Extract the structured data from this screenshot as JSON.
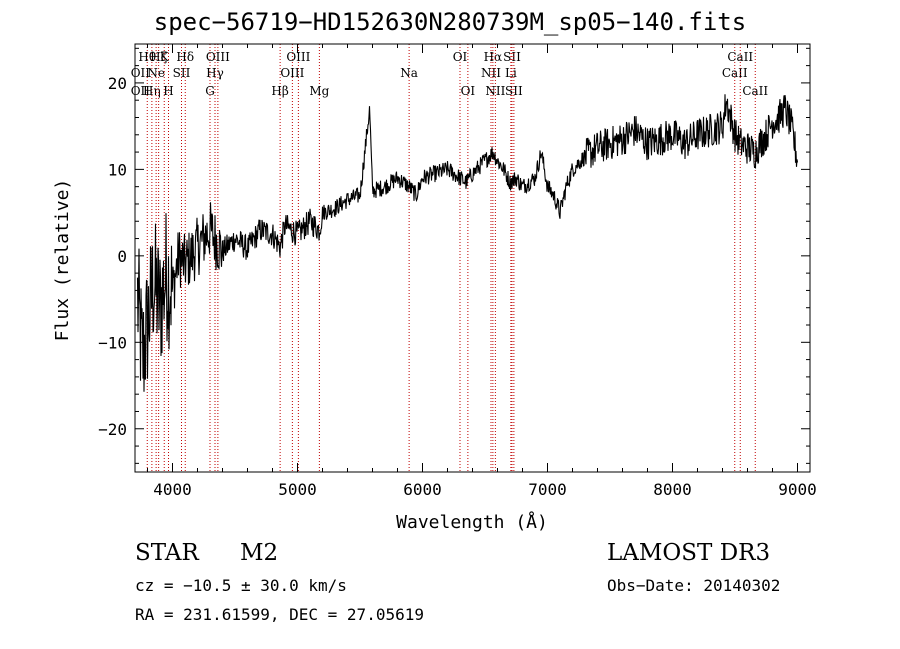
{
  "chart_data": {
    "type": "line",
    "title": "spec−56719−HD152630N280739M_sp05−140.fits",
    "xlabel": "Wavelength (Å)",
    "ylabel": "Flux (relative)",
    "xlim": [
      3700,
      9100
    ],
    "ylim": [
      -25,
      24.5
    ],
    "xticks": [
      4000,
      5000,
      6000,
      7000,
      8000,
      9000
    ],
    "xtick_labels": [
      "4000",
      "5000",
      "6000",
      "7000",
      "8000",
      "9000"
    ],
    "yticks": [
      -20,
      -10,
      0,
      10,
      20
    ],
    "ytick_labels": [
      "−20",
      "−10",
      "0",
      "10",
      "20"
    ],
    "series": [
      {
        "name": "flux",
        "x": [
          3720,
          3760,
          3800,
          3850,
          3900,
          3950,
          4000,
          4050,
          4100,
          4200,
          4300,
          4400,
          4500,
          4600,
          4700,
          4800,
          4861,
          4900,
          5000,
          5100,
          5175,
          5200,
          5300,
          5400,
          5500,
          5577,
          5600,
          5700,
          5800,
          5893,
          5950,
          6000,
          6100,
          6200,
          6300,
          6350,
          6400,
          6500,
          6563,
          6600,
          6650,
          6700,
          6750,
          6800,
          6900,
          6950,
          7000,
          7050,
          7100,
          7150,
          7200,
          7300,
          7400,
          7500,
          7600,
          7700,
          7800,
          7900,
          8000,
          8100,
          8200,
          8300,
          8400,
          8430,
          8500,
          8542,
          8600,
          8662,
          8700,
          8750,
          8800,
          8850,
          8900,
          8950,
          9000
        ],
        "y": [
          -5,
          -12,
          -8,
          -3,
          -6,
          -2,
          -4,
          0,
          -1,
          1,
          3,
          0.5,
          2,
          0.8,
          3,
          2.5,
          1,
          3.5,
          2.5,
          4,
          3,
          5,
          5.5,
          6.5,
          7,
          17,
          7.5,
          8,
          9,
          8,
          7,
          9,
          9.5,
          10,
          9,
          8.5,
          9.5,
          11,
          12,
          11,
          10,
          8.5,
          9,
          8,
          9,
          12,
          8,
          7,
          5,
          8,
          10,
          11.5,
          12.5,
          13,
          13.5,
          14.5,
          13,
          13.5,
          14,
          13,
          14,
          14.5,
          15,
          18,
          14,
          13,
          12.5,
          12,
          13,
          14,
          15.5,
          16,
          17,
          15,
          11
        ]
      }
    ],
    "line_markers": [
      {
        "wavelength": 3798,
        "label": "Hθ",
        "row": 1
      },
      {
        "wavelength": 3835,
        "label": "Hη",
        "row": 3
      },
      {
        "wavelength": 3869,
        "label": "Ne",
        "row": 2
      },
      {
        "wavelength": 3889,
        "label": "Hζ",
        "row": 1
      },
      {
        "wavelength": 3934,
        "label": "K",
        "row": 1
      },
      {
        "wavelength": 3968,
        "label": "H",
        "row": 3
      },
      {
        "wavelength": 4072,
        "label": "SII",
        "row": 2
      },
      {
        "wavelength": 4102,
        "label": "Hδ",
        "row": 1
      },
      {
        "wavelength": 4300,
        "label": "G",
        "row": 3
      },
      {
        "wavelength": 4340,
        "label": "Hγ",
        "row": 2
      },
      {
        "wavelength": 4363,
        "label": "OIII",
        "row": 1
      },
      {
        "wavelength": 4861,
        "label": "Hβ",
        "row": 3
      },
      {
        "wavelength": 4959,
        "label": "OIII",
        "row": 2
      },
      {
        "wavelength": 5007,
        "label": "OIII",
        "row": 1
      },
      {
        "wavelength": 5175,
        "label": "Mg",
        "row": 3
      },
      {
        "wavelength": 5893,
        "label": "Na",
        "row": 2
      },
      {
        "wavelength": 6300,
        "label": "OI",
        "row": 1
      },
      {
        "wavelength": 6363,
        "label": "OI",
        "row": 3
      },
      {
        "wavelength": 6548,
        "label": "NII",
        "row": 2
      },
      {
        "wavelength": 6563,
        "label": "Hα",
        "row": 1
      },
      {
        "wavelength": 6583,
        "label": "NII",
        "row": 3
      },
      {
        "wavelength": 6707,
        "label": "Li",
        "row": 2
      },
      {
        "wavelength": 6716,
        "label": "SII",
        "row": 1
      },
      {
        "wavelength": 6731,
        "label": "SII",
        "row": 3
      },
      {
        "wavelength": 8498,
        "label": "CaII",
        "row": 2
      },
      {
        "wavelength": 8542,
        "label": "CaII",
        "row": 1
      },
      {
        "wavelength": 8662,
        "label": "CaII",
        "row": 3
      }
    ],
    "extra_labels": [
      {
        "label": "OII",
        "wavelength": 3727,
        "row": 2
      },
      {
        "label": "OII",
        "wavelength": 3727,
        "row": 3
      }
    ]
  },
  "info": {
    "object_class": "STAR",
    "subclass": "M2",
    "survey": "LAMOST DR3",
    "redshift": "cz = −10.5 ± 30.0 km/s",
    "obs_date": "Obs−Date: 20140302",
    "coords": "RA = 231.61599, DEC =  27.05619"
  },
  "colors": {
    "line": "#000000",
    "marker": "#c00000"
  }
}
